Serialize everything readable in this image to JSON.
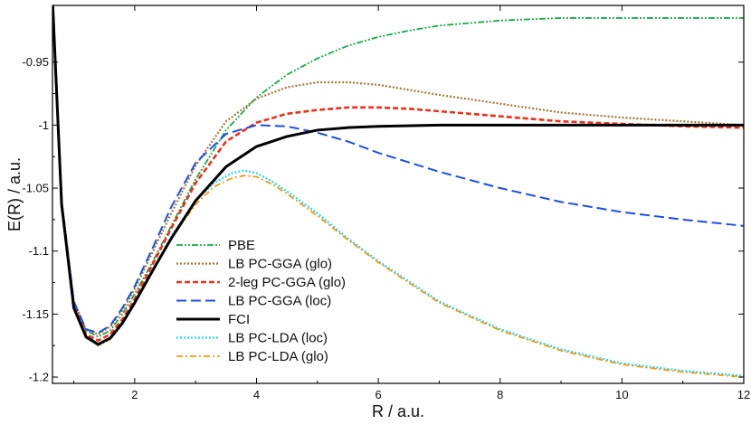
{
  "chart_data": {
    "type": "line",
    "title": "",
    "xlabel": "R / a.u.",
    "ylabel": "E(R) / a.u.",
    "xlim": [
      0.65,
      12.0
    ],
    "ylim": [
      -1.205,
      -0.905
    ],
    "xticks": [
      2,
      4,
      6,
      8,
      10,
      12
    ],
    "yticks": [
      -0.95,
      -1,
      -1.05,
      -1.1,
      -1.15,
      -1.2
    ],
    "xtick_labels": [
      "2",
      "4",
      "6",
      "8",
      "10",
      "12"
    ],
    "ytick_labels": [
      "-0.95",
      "-1",
      "-1.05",
      "-1.1",
      "-1.15",
      "-1.2"
    ],
    "grid": false,
    "legend_position": "lower-center-left",
    "series": [
      {
        "name": "PBE",
        "color": "#1aa84a",
        "dash": "dash-dot-dot",
        "x": [
          0.65,
          0.8,
          1.0,
          1.2,
          1.4,
          1.6,
          1.8,
          2.0,
          2.3,
          2.6,
          3.0,
          3.5,
          4.0,
          4.5,
          5.0,
          5.5,
          6.0,
          6.5,
          7.0,
          8.0,
          9.0,
          10.0,
          11.0,
          12.0
        ],
        "y": [
          -0.9,
          -1.06,
          -1.14,
          -1.163,
          -1.168,
          -1.163,
          -1.15,
          -1.134,
          -1.108,
          -1.08,
          -1.043,
          -1.004,
          -0.978,
          -0.96,
          -0.947,
          -0.937,
          -0.93,
          -0.925,
          -0.921,
          -0.917,
          -0.915,
          -0.915,
          -0.915,
          -0.915
        ]
      },
      {
        "name": "LB PC-GGA (glo)",
        "color": "#a0783c",
        "dash": "dot",
        "x": [
          0.65,
          0.8,
          1.0,
          1.2,
          1.4,
          1.6,
          1.8,
          2.0,
          2.3,
          2.6,
          3.0,
          3.5,
          4.0,
          4.5,
          5.0,
          5.5,
          6.0,
          6.5,
          7.0,
          8.0,
          9.0,
          10.0,
          11.0,
          12.0
        ],
        "y": [
          -0.9,
          -1.06,
          -1.14,
          -1.162,
          -1.166,
          -1.16,
          -1.147,
          -1.13,
          -1.1,
          -1.07,
          -1.032,
          -0.997,
          -0.979,
          -0.97,
          -0.966,
          -0.966,
          -0.968,
          -0.972,
          -0.976,
          -0.983,
          -0.99,
          -0.994,
          -0.997,
          -1.0
        ]
      },
      {
        "name": "2-leg PC-GGA (glo)",
        "color": "#e8321e",
        "dash": "dash",
        "x": [
          0.65,
          0.8,
          1.0,
          1.2,
          1.4,
          1.6,
          1.8,
          2.0,
          2.3,
          2.6,
          3.0,
          3.5,
          4.0,
          4.5,
          5.0,
          5.5,
          6.0,
          6.5,
          7.0,
          8.0,
          9.0,
          10.0,
          11.0,
          12.0
        ],
        "y": [
          -0.9,
          -1.062,
          -1.143,
          -1.166,
          -1.171,
          -1.166,
          -1.154,
          -1.138,
          -1.11,
          -1.082,
          -1.046,
          -1.013,
          -0.998,
          -0.991,
          -0.988,
          -0.986,
          -0.986,
          -0.987,
          -0.989,
          -0.993,
          -0.997,
          -0.999,
          -1.001,
          -1.002
        ]
      },
      {
        "name": "LB PC-GGA (loc)",
        "color": "#1e4ee0",
        "dash": "long-dash",
        "x": [
          0.65,
          0.8,
          1.0,
          1.2,
          1.4,
          1.6,
          1.8,
          2.0,
          2.3,
          2.6,
          3.0,
          3.5,
          4.0,
          4.5,
          5.0,
          5.5,
          6.0,
          7.0,
          8.0,
          9.0,
          10.0,
          11.0,
          12.0
        ],
        "y": [
          -0.9,
          -1.06,
          -1.14,
          -1.162,
          -1.165,
          -1.159,
          -1.145,
          -1.128,
          -1.097,
          -1.065,
          -1.03,
          -1.007,
          -1.0,
          -1.001,
          -1.006,
          -1.013,
          -1.022,
          -1.037,
          -1.05,
          -1.061,
          -1.069,
          -1.075,
          -1.08
        ]
      },
      {
        "name": "FCI",
        "color": "#000000",
        "dash": "solid",
        "x": [
          0.65,
          0.8,
          1.0,
          1.2,
          1.4,
          1.6,
          1.8,
          2.0,
          2.3,
          2.6,
          3.0,
          3.5,
          4.0,
          4.5,
          5.0,
          5.5,
          6.0,
          7.0,
          8.0,
          9.0,
          10.0,
          11.0,
          12.0
        ],
        "y": [
          -0.9,
          -1.063,
          -1.145,
          -1.168,
          -1.174,
          -1.169,
          -1.157,
          -1.141,
          -1.115,
          -1.09,
          -1.06,
          -1.033,
          -1.017,
          -1.009,
          -1.004,
          -1.002,
          -1.001,
          -1.0,
          -1.0,
          -1.0,
          -1.0,
          -1.0,
          -1.0
        ]
      },
      {
        "name": "LB PC-LDA (loc)",
        "color": "#2ad4e6",
        "dash": "dot",
        "x": [
          0.65,
          0.8,
          1.0,
          1.2,
          1.4,
          1.6,
          1.8,
          2.0,
          2.3,
          2.6,
          3.0,
          3.3,
          3.6,
          3.8,
          4.0,
          4.3,
          4.6,
          5.0,
          5.5,
          6.0,
          7.0,
          8.0,
          9.0,
          10.0,
          11.0,
          12.0
        ],
        "y": [
          -0.9,
          -1.063,
          -1.146,
          -1.169,
          -1.175,
          -1.17,
          -1.158,
          -1.142,
          -1.115,
          -1.088,
          -1.06,
          -1.046,
          -1.038,
          -1.036,
          -1.038,
          -1.046,
          -1.056,
          -1.07,
          -1.09,
          -1.108,
          -1.14,
          -1.162,
          -1.178,
          -1.189,
          -1.195,
          -1.199
        ]
      },
      {
        "name": "LB PC-LDA (glo)",
        "color": "#f29a1a",
        "dash": "dash-dot",
        "x": [
          0.65,
          0.8,
          1.0,
          1.2,
          1.4,
          1.6,
          1.8,
          2.0,
          2.3,
          2.6,
          3.0,
          3.3,
          3.6,
          3.8,
          4.0,
          4.3,
          4.6,
          5.0,
          5.5,
          6.0,
          7.0,
          8.0,
          9.0,
          10.0,
          11.0,
          12.0
        ],
        "y": [
          -0.9,
          -1.063,
          -1.146,
          -1.169,
          -1.175,
          -1.17,
          -1.158,
          -1.142,
          -1.116,
          -1.09,
          -1.063,
          -1.049,
          -1.042,
          -1.04,
          -1.041,
          -1.048,
          -1.058,
          -1.072,
          -1.091,
          -1.109,
          -1.141,
          -1.163,
          -1.179,
          -1.19,
          -1.196,
          -1.2
        ]
      }
    ]
  }
}
